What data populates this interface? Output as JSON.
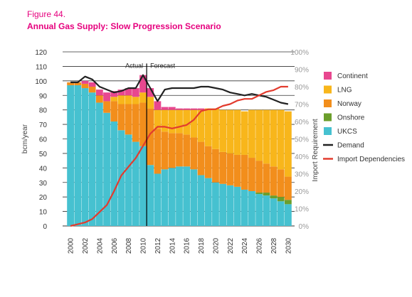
{
  "figure_label": "Figure 44.",
  "title": "Annual Gas Supply: Slow Progression Scenario",
  "chart_data": {
    "type": "bar",
    "stacked": true,
    "title": "Annual Gas Supply: Slow Progression Scenario",
    "ylabel": "bcm/year",
    "y2label": "Import Requirement",
    "ylim": [
      0,
      120
    ],
    "y2lim": [
      0,
      100
    ],
    "yticks": [
      "0",
      "10",
      "20",
      "30",
      "40",
      "50",
      "60",
      "70",
      "80",
      "90",
      "100",
      "110",
      "120"
    ],
    "y2ticks": [
      "0%",
      "10%",
      "20%",
      "30%",
      "40%",
      "50%",
      "60%",
      "70%",
      "80%",
      "90%",
      "100%"
    ],
    "categories": [
      2000,
      2001,
      2002,
      2003,
      2004,
      2005,
      2006,
      2007,
      2008,
      2009,
      2010,
      2011,
      2012,
      2013,
      2014,
      2015,
      2016,
      2017,
      2018,
      2019,
      2020,
      2021,
      2022,
      2023,
      2024,
      2025,
      2026,
      2027,
      2028,
      2029,
      2030
    ],
    "xticks": [
      "2000",
      "2002",
      "2004",
      "2006",
      "2008",
      "2010",
      "2012",
      "2014",
      "2016",
      "2018",
      "2020",
      "2022",
      "2024",
      "2026",
      "2028",
      "2030"
    ],
    "annotations": {
      "actual": "Actual",
      "forecast": "Forecast",
      "split_after": 2010
    },
    "series": [
      {
        "name": "UKCS",
        "color": "#46c1d0",
        "values": [
          97,
          97,
          95,
          92,
          85,
          78,
          72,
          66,
          63,
          58,
          55,
          42,
          36,
          39,
          40,
          41,
          41,
          39,
          35,
          33,
          30,
          29,
          28,
          27,
          25,
          24,
          22,
          21,
          19,
          17,
          15
        ]
      },
      {
        "name": "Onshore",
        "color": "#6b9e2b",
        "values": [
          0,
          0,
          0,
          0,
          0,
          0,
          0,
          0,
          0,
          0,
          0,
          0,
          0,
          0,
          0,
          0,
          0,
          0,
          0,
          0,
          0,
          0,
          0,
          0,
          0,
          0,
          1,
          2,
          2,
          3,
          3
        ]
      },
      {
        "name": "Norway",
        "color": "#f28e1c",
        "values": [
          2,
          2,
          3,
          4,
          5,
          8,
          14,
          18,
          21,
          26,
          30,
          39,
          31,
          26,
          24,
          23,
          22,
          22,
          23,
          22,
          23,
          22,
          22,
          22,
          24,
          23,
          22,
          20,
          20,
          19,
          16
        ]
      },
      {
        "name": "LNG",
        "color": "#f8b61b",
        "values": [
          0,
          0,
          0,
          0,
          0,
          0,
          3,
          6,
          6,
          5,
          7,
          8,
          13,
          15,
          16,
          16,
          17,
          19,
          22,
          26,
          28,
          29,
          30,
          31,
          30,
          33,
          35,
          37,
          39,
          41,
          45
        ]
      },
      {
        "name": "Continent",
        "color": "#e8478f",
        "values": [
          0,
          0,
          2,
          3,
          4,
          6,
          4,
          4,
          5,
          6,
          12,
          6,
          6,
          2,
          2,
          1,
          1,
          1,
          1,
          0,
          0,
          0,
          0,
          0,
          0,
          0,
          0,
          0,
          0,
          0,
          0
        ]
      }
    ],
    "lines": [
      {
        "name": "Demand",
        "axis": "left",
        "color": "#222222",
        "values": [
          99,
          99,
          103,
          101,
          96,
          94,
          92,
          93,
          95,
          95,
          104,
          95,
          86,
          94,
          95,
          95,
          95,
          95,
          96,
          96,
          95,
          94,
          92,
          91,
          90,
          91,
          90,
          89,
          87,
          85,
          84
        ]
      },
      {
        "name": "Import Dependencies",
        "axis": "right",
        "color": "#e23b2e",
        "values": [
          0,
          1,
          2,
          4,
          8,
          12,
          20,
          29,
          34,
          39,
          46,
          53,
          57,
          57,
          56,
          57,
          58,
          61,
          66,
          67,
          67,
          69,
          70,
          72,
          73,
          73,
          75,
          77,
          78,
          80,
          80
        ]
      }
    ],
    "legend": {
      "placement": "right",
      "items": [
        {
          "name": "Continent",
          "kind": "box",
          "color": "#e8478f"
        },
        {
          "name": "LNG",
          "kind": "box",
          "color": "#f8b61b"
        },
        {
          "name": "Norway",
          "kind": "box",
          "color": "#f28e1c"
        },
        {
          "name": "Onshore",
          "kind": "box",
          "color": "#6b9e2b"
        },
        {
          "name": "UKCS",
          "kind": "box",
          "color": "#46c1d0"
        },
        {
          "name": "Demand",
          "kind": "line",
          "color": "#222222"
        },
        {
          "name": "Import Dependencies",
          "kind": "line",
          "color": "#e23b2e"
        }
      ]
    },
    "grid": true
  }
}
